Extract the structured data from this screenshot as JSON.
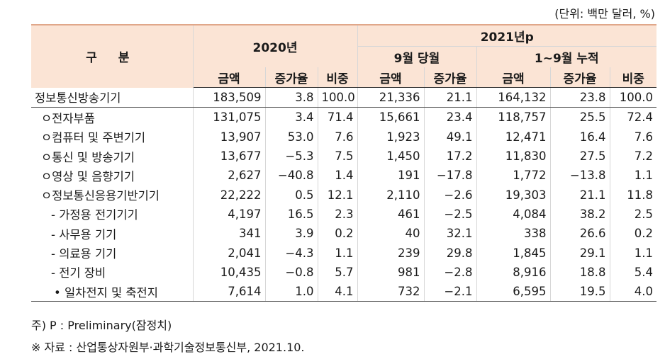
{
  "unit_note": "(단위: 백만 달러, %)",
  "header": {
    "category": "구 분",
    "year_2020": "2020년",
    "year_2021": "2021년p",
    "sep_month": "9월 당월",
    "jan_sep": "1~9월 누적",
    "col_amount": "금액",
    "col_growth": "증가율",
    "col_share": "비중"
  },
  "rows": [
    {
      "label": "정보통신방송기기",
      "a2020": "183,509",
      "g2020": "3.8",
      "s2020": "100.0",
      "aSep": "21,336",
      "gSep": "21.1",
      "aCum": "164,132",
      "gCum": "23.8",
      "sCum": "100.0"
    },
    {
      "label": "ㅇ전자부품",
      "a2020": "131,075",
      "g2020": "3.4",
      "s2020": "71.4",
      "aSep": "15,661",
      "gSep": "23.4",
      "aCum": "118,757",
      "gCum": "25.5",
      "sCum": "72.4"
    },
    {
      "label": "ㅇ컴퓨터 및 주변기기",
      "a2020": "13,907",
      "g2020": "53.0",
      "s2020": "7.6",
      "aSep": "1,923",
      "gSep": "49.1",
      "aCum": "12,471",
      "gCum": "16.4",
      "sCum": "7.6"
    },
    {
      "label": "ㅇ통신 및 방송기기",
      "a2020": "13,677",
      "g2020": "−5.3",
      "s2020": "7.5",
      "aSep": "1,450",
      "gSep": "17.2",
      "aCum": "11,830",
      "gCum": "27.5",
      "sCum": "7.2"
    },
    {
      "label": "ㅇ영상 및 음향기기",
      "a2020": "2,627",
      "g2020": "−40.8",
      "s2020": "1.4",
      "aSep": "191",
      "gSep": "−17.8",
      "aCum": "1,772",
      "gCum": "−13.8",
      "sCum": "1.1"
    },
    {
      "label": "ㅇ정보통신응용기반기기",
      "a2020": "22,222",
      "g2020": "0.5",
      "s2020": "12.1",
      "aSep": "2,110",
      "gSep": "−2.6",
      "aCum": "19,303",
      "gCum": "21.1",
      "sCum": "11.8"
    },
    {
      "label": "- 가정용 전기기기",
      "a2020": "4,197",
      "g2020": "16.5",
      "s2020": "2.3",
      "aSep": "461",
      "gSep": "−2.5",
      "aCum": "4,084",
      "gCum": "38.2",
      "sCum": "2.5"
    },
    {
      "label": "- 사무용 기기",
      "a2020": "341",
      "g2020": "3.9",
      "s2020": "0.2",
      "aSep": "40",
      "gSep": "32.1",
      "aCum": "338",
      "gCum": "26.6",
      "sCum": "0.2"
    },
    {
      "label": "- 의료용 기기",
      "a2020": "2,041",
      "g2020": "−4.3",
      "s2020": "1.1",
      "aSep": "239",
      "gSep": "29.8",
      "aCum": "1,845",
      "gCum": "29.1",
      "sCum": "1.1"
    },
    {
      "label": "- 전기 장비",
      "a2020": "10,435",
      "g2020": "−0.8",
      "s2020": "5.7",
      "aSep": "981",
      "gSep": "−2.8",
      "aCum": "8,916",
      "gCum": "18.8",
      "sCum": "5.4"
    },
    {
      "label": "• 일차전지 및 축전지",
      "a2020": "7,614",
      "g2020": "1.0",
      "s2020": "4.1",
      "aSep": "732",
      "gSep": "−2.1",
      "aCum": "6,595",
      "gCum": "19.5",
      "sCum": "4.0"
    }
  ],
  "footnote": "주) P : Preliminary(잠정치)",
  "source": "※ 자료 : 산업통상자원부·과학기술정보통신부, 2021.10."
}
